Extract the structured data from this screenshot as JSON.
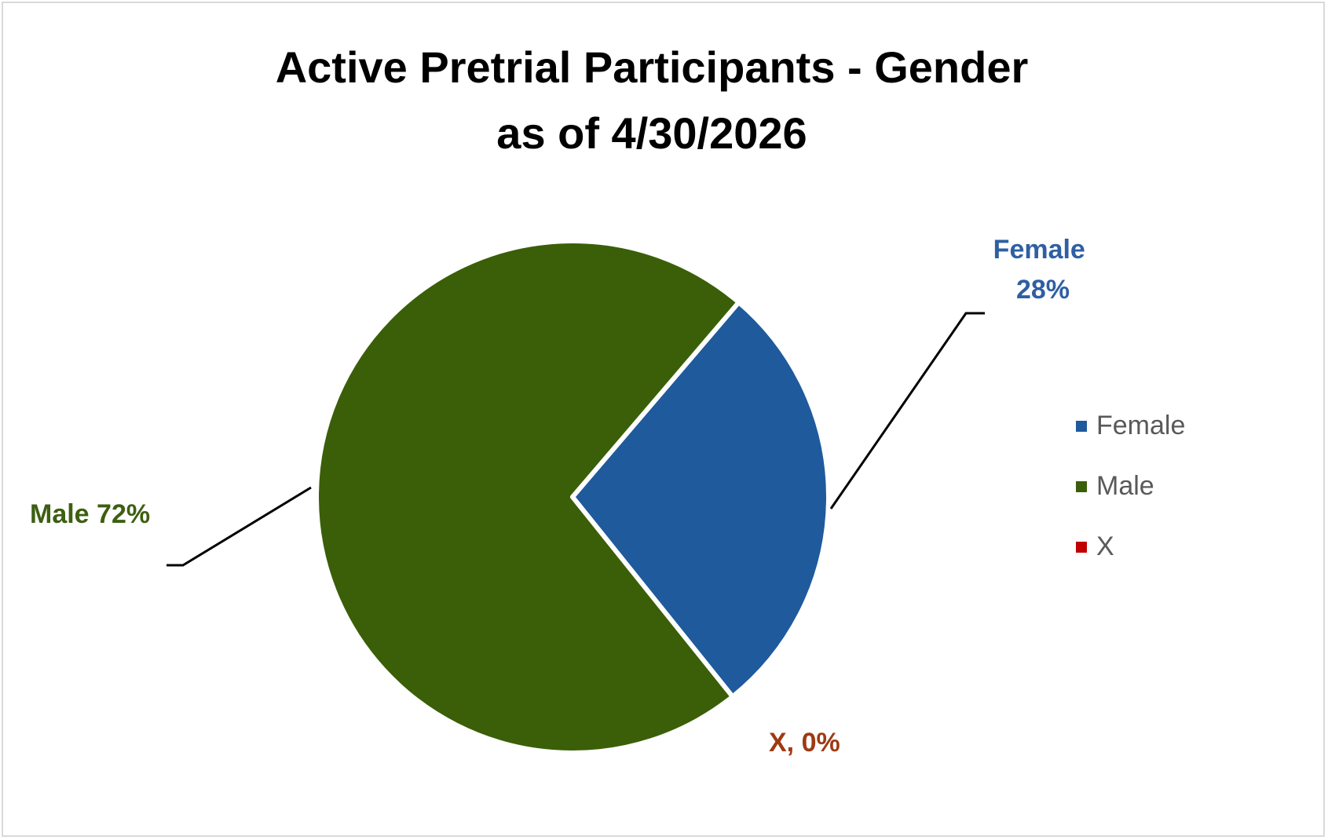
{
  "chart_data": {
    "type": "pie",
    "title": [
      "Active Pretrial Participants - Gender",
      "as of 4/30/2026"
    ],
    "slices": [
      {
        "name": "Female",
        "percent": 28,
        "label_lines": [
          "Female",
          "28%"
        ],
        "color": "#1f5a9c",
        "label_color": "#2e5fa3"
      },
      {
        "name": "Male",
        "percent": 72,
        "label_lines": [
          "Male 72%"
        ],
        "color": "#3a5f08",
        "label_color": "#3d5f12"
      },
      {
        "name": "X",
        "percent": 0,
        "label_lines": [
          "X, 0%"
        ],
        "color": "#c00000",
        "label_color": "#9e3a12"
      }
    ],
    "legend": {
      "position": "right",
      "entries": [
        {
          "name": "Female",
          "color": "#1f5a9c"
        },
        {
          "name": "Male",
          "color": "#3a5f08"
        },
        {
          "name": "X",
          "color": "#c00000"
        }
      ]
    }
  }
}
